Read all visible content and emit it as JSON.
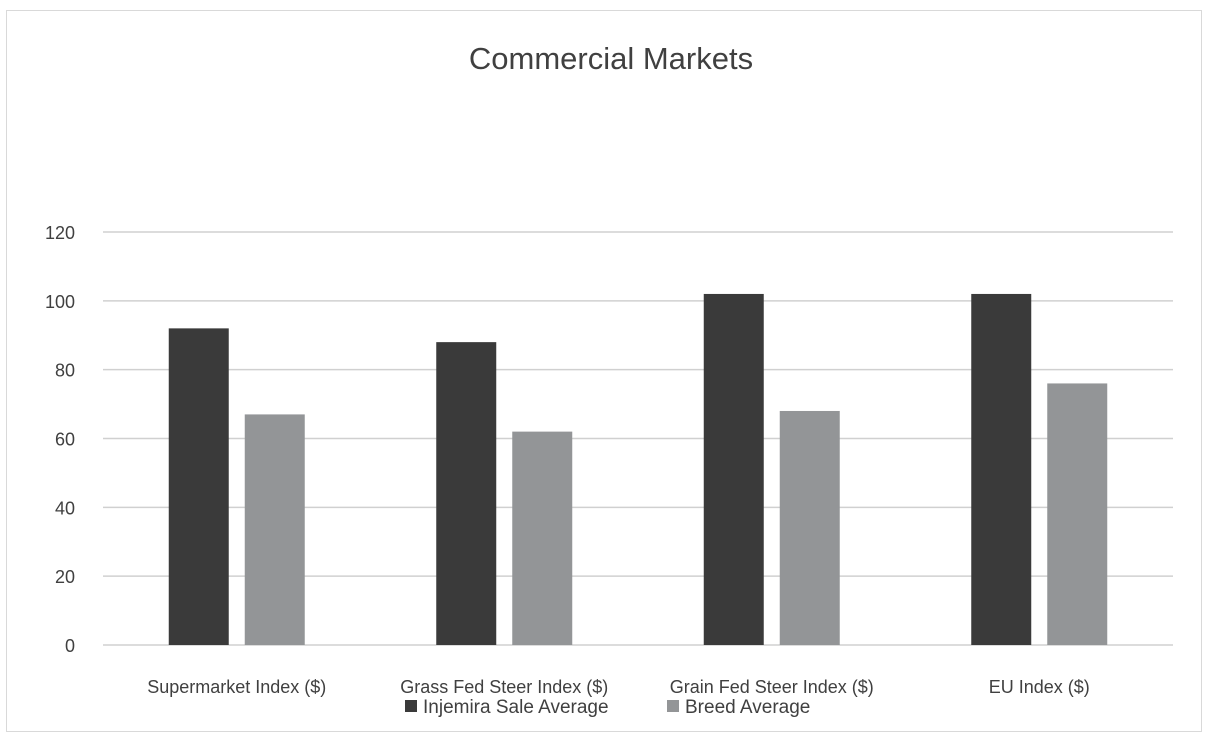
{
  "chart_data": {
    "type": "bar",
    "title": "Commercial Markets",
    "categories": [
      "Supermarket Index ($)",
      "Grass Fed Steer Index ($)",
      "Grain Fed Steer Index ($)",
      "EU Index ($)"
    ],
    "series": [
      {
        "name": "Injemira Sale Average",
        "color": "#3a3a3a",
        "values": [
          92,
          88,
          102,
          102
        ]
      },
      {
        "name": "Breed Average",
        "color": "#939597",
        "values": [
          67,
          62,
          68,
          76
        ]
      }
    ],
    "ylim": [
      0,
      120
    ],
    "yticks": [
      0,
      20,
      40,
      60,
      80,
      100,
      120
    ],
    "grid": true,
    "legend_position": "bottom"
  }
}
